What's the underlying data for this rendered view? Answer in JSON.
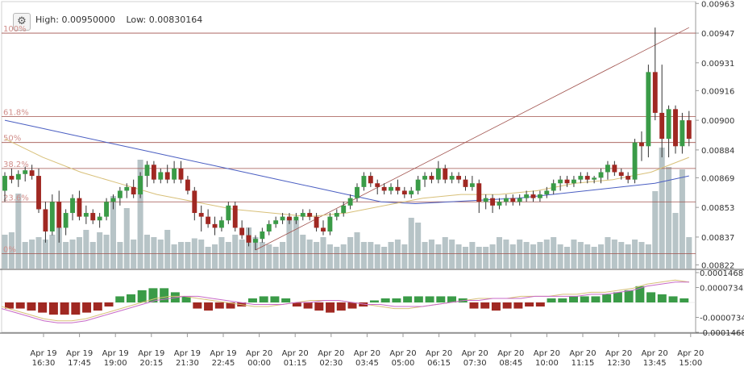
{
  "header": {
    "settings_icon": "gear-icon",
    "high_label": "High: 0.00950000",
    "low_label": "Low: 0.00830164"
  },
  "colors": {
    "up": "#3a9b47",
    "down": "#a02822",
    "volume": "#b7c4c7",
    "ma_blue": "#4b5fc2",
    "ma_tan": "#d8c079",
    "fib_line": "#a0524d",
    "fib_text": "#d18f8b",
    "macd_tan": "#d8c079",
    "macd_purple": "#c86ac8"
  },
  "chart_data": [
    {
      "type": "candlestick",
      "title": "",
      "y_ticks": [
        "0.00963",
        "0.00947",
        "0.00931",
        "0.00916",
        "0.00900",
        "0.00884",
        "0.00869",
        "0.00853",
        "0.00837",
        "0.00822"
      ],
      "ylim": [
        0.0082,
        0.00964
      ],
      "x_ticks": [
        [
          "Apr 19",
          "16:30"
        ],
        [
          "Apr 19",
          "17:45"
        ],
        [
          "Apr 19",
          "19:00"
        ],
        [
          "Apr 19",
          "20:15"
        ],
        [
          "Apr 19",
          "21:30"
        ],
        [
          "Apr 19",
          "22:45"
        ],
        [
          "Apr 20",
          "00:00"
        ],
        [
          "Apr 20",
          "01:15"
        ],
        [
          "Apr 20",
          "02:30"
        ],
        [
          "Apr 20",
          "03:45"
        ],
        [
          "Apr 20",
          "05:00"
        ],
        [
          "Apr 20",
          "06:15"
        ],
        [
          "Apr 20",
          "07:30"
        ],
        [
          "Apr 20",
          "08:45"
        ],
        [
          "Apr 20",
          "10:00"
        ],
        [
          "Apr 20",
          "11:15"
        ],
        [
          "Apr 20",
          "12:30"
        ],
        [
          "Apr 20",
          "13:45"
        ],
        [
          "Apr 20",
          "15:00"
        ]
      ],
      "fib_levels": [
        {
          "label": "100%",
          "value": 0.00947
        },
        {
          "label": "61.8%",
          "value": 0.00902
        },
        {
          "label": "50%",
          "value": 0.00888
        },
        {
          "label": "38.2%",
          "value": 0.00874
        },
        {
          "label": "23.6%",
          "value": 0.00856
        },
        {
          "label": "0%",
          "value": 0.00828
        }
      ],
      "fib_swing": {
        "from": [
          37,
          0.0083
        ],
        "to": [
          101,
          0.0095
        ]
      },
      "candles": [
        [
          0,
          0.00862,
          0.00872,
          0.00856,
          0.0087
        ],
        [
          1,
          0.0087,
          0.00874,
          0.00866,
          0.00868
        ],
        [
          2,
          0.00868,
          0.00873,
          0.00864,
          0.00871
        ],
        [
          3,
          0.00871,
          0.00875,
          0.00867,
          0.00873
        ],
        [
          4,
          0.00873,
          0.00876,
          0.00868,
          0.0087
        ],
        [
          5,
          0.0087,
          0.00874,
          0.0085,
          0.00852
        ],
        [
          6,
          0.00852,
          0.00856,
          0.00834,
          0.0084
        ],
        [
          7,
          0.0084,
          0.0086,
          0.00838,
          0.00856
        ],
        [
          8,
          0.00856,
          0.00862,
          0.00834,
          0.00842
        ],
        [
          9,
          0.00842,
          0.00852,
          0.00838,
          0.0085
        ],
        [
          10,
          0.0085,
          0.0086,
          0.00846,
          0.00858
        ],
        [
          11,
          0.00858,
          0.00862,
          0.00846,
          0.00848
        ],
        [
          12,
          0.00848,
          0.00854,
          0.00844,
          0.0085
        ],
        [
          13,
          0.0085,
          0.00852,
          0.00844,
          0.00846
        ],
        [
          14,
          0.00846,
          0.0085,
          0.00842,
          0.00848
        ],
        [
          15,
          0.00848,
          0.00858,
          0.00846,
          0.00856
        ],
        [
          16,
          0.00856,
          0.0086,
          0.00852,
          0.00858
        ],
        [
          17,
          0.00858,
          0.00864,
          0.00854,
          0.00862
        ],
        [
          18,
          0.00862,
          0.00866,
          0.00858,
          0.00864
        ],
        [
          19,
          0.00864,
          0.00868,
          0.00858,
          0.0086
        ],
        [
          20,
          0.0086,
          0.00872,
          0.00858,
          0.0087
        ],
        [
          21,
          0.0087,
          0.00878,
          0.00864,
          0.00876
        ],
        [
          22,
          0.00876,
          0.00878,
          0.00866,
          0.00868
        ],
        [
          23,
          0.00868,
          0.00874,
          0.00866,
          0.00872
        ],
        [
          24,
          0.00872,
          0.00876,
          0.00866,
          0.00868
        ],
        [
          25,
          0.00868,
          0.00878,
          0.00866,
          0.00874
        ],
        [
          26,
          0.00874,
          0.00878,
          0.00866,
          0.00868
        ],
        [
          27,
          0.00868,
          0.0087,
          0.0086,
          0.00862
        ],
        [
          28,
          0.00862,
          0.00864,
          0.00846,
          0.0085
        ],
        [
          29,
          0.0085,
          0.00854,
          0.0084,
          0.00848
        ],
        [
          30,
          0.00848,
          0.00852,
          0.00842,
          0.00844
        ],
        [
          31,
          0.00844,
          0.00848,
          0.00838,
          0.00842
        ],
        [
          32,
          0.00842,
          0.00848,
          0.0084,
          0.00846
        ],
        [
          33,
          0.00846,
          0.00856,
          0.00844,
          0.00854
        ],
        [
          34,
          0.00854,
          0.00856,
          0.0084,
          0.00842
        ],
        [
          35,
          0.00842,
          0.00846,
          0.00836,
          0.00838
        ],
        [
          36,
          0.00838,
          0.00842,
          0.00832,
          0.00834
        ],
        [
          37,
          0.00834,
          0.00838,
          0.0083,
          0.00836
        ],
        [
          38,
          0.00836,
          0.00842,
          0.00834,
          0.0084
        ],
        [
          39,
          0.0084,
          0.00846,
          0.00838,
          0.00844
        ],
        [
          40,
          0.00844,
          0.00848,
          0.00842,
          0.00846
        ],
        [
          41,
          0.00846,
          0.0085,
          0.00844,
          0.00848
        ],
        [
          42,
          0.00848,
          0.0085,
          0.00844,
          0.00846
        ],
        [
          43,
          0.00846,
          0.0085,
          0.00844,
          0.00848
        ],
        [
          44,
          0.00848,
          0.00852,
          0.00846,
          0.0085
        ],
        [
          45,
          0.0085,
          0.00852,
          0.00846,
          0.00848
        ],
        [
          46,
          0.00848,
          0.0085,
          0.0084,
          0.00842
        ],
        [
          47,
          0.00842,
          0.00846,
          0.00838,
          0.0084
        ],
        [
          48,
          0.0084,
          0.0085,
          0.00838,
          0.00848
        ],
        [
          49,
          0.00848,
          0.00852,
          0.00846,
          0.0085
        ],
        [
          50,
          0.0085,
          0.00856,
          0.00848,
          0.00854
        ],
        [
          51,
          0.00854,
          0.0086,
          0.00852,
          0.00858
        ],
        [
          52,
          0.00858,
          0.00866,
          0.00856,
          0.00864
        ],
        [
          53,
          0.00864,
          0.00872,
          0.00862,
          0.0087
        ],
        [
          54,
          0.0087,
          0.00872,
          0.00864,
          0.00866
        ],
        [
          55,
          0.00866,
          0.00868,
          0.0086,
          0.00864
        ],
        [
          56,
          0.00864,
          0.00866,
          0.0086,
          0.00862
        ],
        [
          57,
          0.00862,
          0.00866,
          0.0086,
          0.00864
        ],
        [
          58,
          0.00864,
          0.00868,
          0.0086,
          0.00862
        ],
        [
          59,
          0.00862,
          0.00864,
          0.00858,
          0.0086
        ],
        [
          60,
          0.0086,
          0.00864,
          0.00858,
          0.00862
        ],
        [
          61,
          0.00862,
          0.0087,
          0.0086,
          0.00868
        ],
        [
          62,
          0.00868,
          0.00872,
          0.00864,
          0.0087
        ],
        [
          63,
          0.0087,
          0.00872,
          0.00866,
          0.00868
        ],
        [
          64,
          0.00868,
          0.00878,
          0.00866,
          0.00874
        ],
        [
          65,
          0.00874,
          0.00876,
          0.00866,
          0.00868
        ],
        [
          66,
          0.00868,
          0.00872,
          0.00866,
          0.0087
        ],
        [
          67,
          0.0087,
          0.00872,
          0.00866,
          0.00868
        ],
        [
          68,
          0.00868,
          0.0087,
          0.00862,
          0.00864
        ],
        [
          69,
          0.00864,
          0.0087,
          0.00862,
          0.00866
        ],
        [
          70,
          0.00866,
          0.00868,
          0.0085,
          0.00856
        ],
        [
          71,
          0.00856,
          0.0086,
          0.00852,
          0.00858
        ],
        [
          72,
          0.00858,
          0.0086,
          0.0085,
          0.00854
        ],
        [
          73,
          0.00854,
          0.00858,
          0.00852,
          0.00856
        ],
        [
          74,
          0.00856,
          0.0086,
          0.00854,
          0.00858
        ],
        [
          75,
          0.00858,
          0.0086,
          0.00854,
          0.00856
        ],
        [
          76,
          0.00856,
          0.0086,
          0.00854,
          0.00858
        ],
        [
          77,
          0.00858,
          0.00862,
          0.00856,
          0.0086
        ],
        [
          78,
          0.0086,
          0.00862,
          0.00856,
          0.00858
        ],
        [
          79,
          0.00858,
          0.00862,
          0.00856,
          0.0086
        ],
        [
          80,
          0.0086,
          0.00864,
          0.00858,
          0.00862
        ],
        [
          81,
          0.00862,
          0.00868,
          0.0086,
          0.00866
        ],
        [
          82,
          0.00866,
          0.0087,
          0.00862,
          0.00868
        ],
        [
          83,
          0.00868,
          0.0087,
          0.00864,
          0.00866
        ],
        [
          84,
          0.00866,
          0.0087,
          0.00864,
          0.00868
        ],
        [
          85,
          0.00868,
          0.00872,
          0.00866,
          0.0087
        ],
        [
          86,
          0.0087,
          0.00872,
          0.00866,
          0.00868
        ],
        [
          87,
          0.00868,
          0.0087,
          0.00866,
          0.00869
        ],
        [
          88,
          0.00869,
          0.00874,
          0.00866,
          0.00872
        ],
        [
          89,
          0.00872,
          0.00878,
          0.00868,
          0.00876
        ],
        [
          90,
          0.00876,
          0.00878,
          0.0087,
          0.00872
        ],
        [
          91,
          0.00872,
          0.00874,
          0.00868,
          0.0087
        ],
        [
          92,
          0.0087,
          0.00872,
          0.00866,
          0.00868
        ],
        [
          93,
          0.00868,
          0.0089,
          0.00866,
          0.00888
        ],
        [
          94,
          0.00888,
          0.00894,
          0.00878,
          0.00886
        ],
        [
          95,
          0.00886,
          0.0093,
          0.0088,
          0.00926
        ],
        [
          96,
          0.00926,
          0.0095,
          0.009,
          0.00904
        ],
        [
          97,
          0.00904,
          0.0093,
          0.0088,
          0.0089
        ],
        [
          98,
          0.0089,
          0.00908,
          0.0088,
          0.00906
        ],
        [
          99,
          0.00906,
          0.00908,
          0.00882,
          0.00886
        ],
        [
          100,
          0.00886,
          0.00904,
          0.00882,
          0.009
        ],
        [
          101,
          0.009,
          0.00905,
          0.00886,
          0.0089
        ]
      ],
      "volume_max": 100,
      "volume": [
        28,
        30,
        62,
        22,
        24,
        26,
        24,
        28,
        34,
        22,
        24,
        26,
        32,
        22,
        30,
        28,
        60,
        22,
        50,
        24,
        90,
        28,
        26,
        24,
        32,
        20,
        22,
        22,
        25,
        24,
        18,
        20,
        26,
        22,
        28,
        24,
        34,
        26,
        22,
        20,
        18,
        22,
        42,
        40,
        28,
        24,
        22,
        26,
        20,
        18,
        20,
        26,
        30,
        22,
        22,
        20,
        18,
        22,
        24,
        20,
        42,
        38,
        22,
        24,
        20,
        26,
        24,
        20,
        18,
        22,
        18,
        18,
        20,
        26,
        24,
        20,
        24,
        22,
        20,
        22,
        24,
        26,
        20,
        18,
        24,
        22,
        20,
        18,
        20,
        26,
        24,
        22,
        20,
        24,
        22,
        20,
        64,
        100,
        84,
        46,
        82,
        26
      ],
      "ma_blue": [
        0.009,
        0.00896,
        0.00892,
        0.00888,
        0.00884,
        0.0088,
        0.00876,
        0.00872,
        0.00868,
        0.00864,
        0.0086,
        0.00856,
        0.00855,
        0.00856,
        0.00857,
        0.00858,
        0.0086,
        0.00862,
        0.00864,
        0.00866,
        0.0087
      ],
      "ma_tan": [
        0.0089,
        0.0088,
        0.00872,
        0.00866,
        0.0086,
        0.00856,
        0.00852,
        0.0085,
        0.00848,
        0.0085,
        0.00854,
        0.00858,
        0.0086,
        0.0086,
        0.00862,
        0.00866,
        0.00868,
        0.00872,
        0.0088
      ],
      "macd_bars": [
        -3,
        -3,
        -4,
        -5,
        -6,
        -6,
        -6,
        -5,
        -4,
        -2,
        3,
        4,
        6,
        7,
        7,
        5,
        3,
        -3,
        -4,
        -3,
        -3,
        -2,
        2,
        3,
        3,
        2,
        -2,
        -3,
        -4,
        -5,
        -4,
        -3,
        -2,
        1,
        2,
        2,
        3,
        3,
        3,
        3,
        3,
        2,
        -3,
        -3,
        -4,
        -3,
        -3,
        -2,
        -2,
        2,
        2,
        3,
        3,
        3,
        4,
        5,
        6,
        8,
        5,
        4,
        3,
        2
      ],
      "macd_ylim": [
        -14.68,
        14.68
      ],
      "macd_y_ticks": [
        "0.00014685",
        "0.00007342",
        "-0.00007342",
        "-0.00014685"
      ],
      "macd_tan": [
        -2,
        -4,
        -6,
        -8,
        -9,
        -9,
        -8,
        -6,
        -4,
        -2,
        0,
        2,
        3,
        3,
        2,
        1,
        0,
        -1,
        -2,
        -2,
        -1,
        0,
        1,
        1,
        1,
        0,
        -1,
        -2,
        -3,
        -3,
        -2,
        -1,
        0,
        1,
        2,
        2,
        2,
        3,
        3,
        3,
        4,
        4,
        5,
        5,
        6,
        7,
        9,
        10,
        11,
        10
      ],
      "macd_purple": [
        -3,
        -5,
        -7,
        -9,
        -10,
        -10,
        -9,
        -7,
        -5,
        -3,
        -1,
        1,
        2,
        3,
        3,
        2,
        1,
        0,
        -1,
        -1,
        -1,
        0,
        0,
        1,
        1,
        0,
        -1,
        -1,
        -2,
        -2,
        -2,
        -1,
        0,
        1,
        1,
        2,
        2,
        2,
        3,
        3,
        3,
        3,
        4,
        4,
        5,
        6,
        8,
        9,
        10,
        10
      ]
    }
  ]
}
